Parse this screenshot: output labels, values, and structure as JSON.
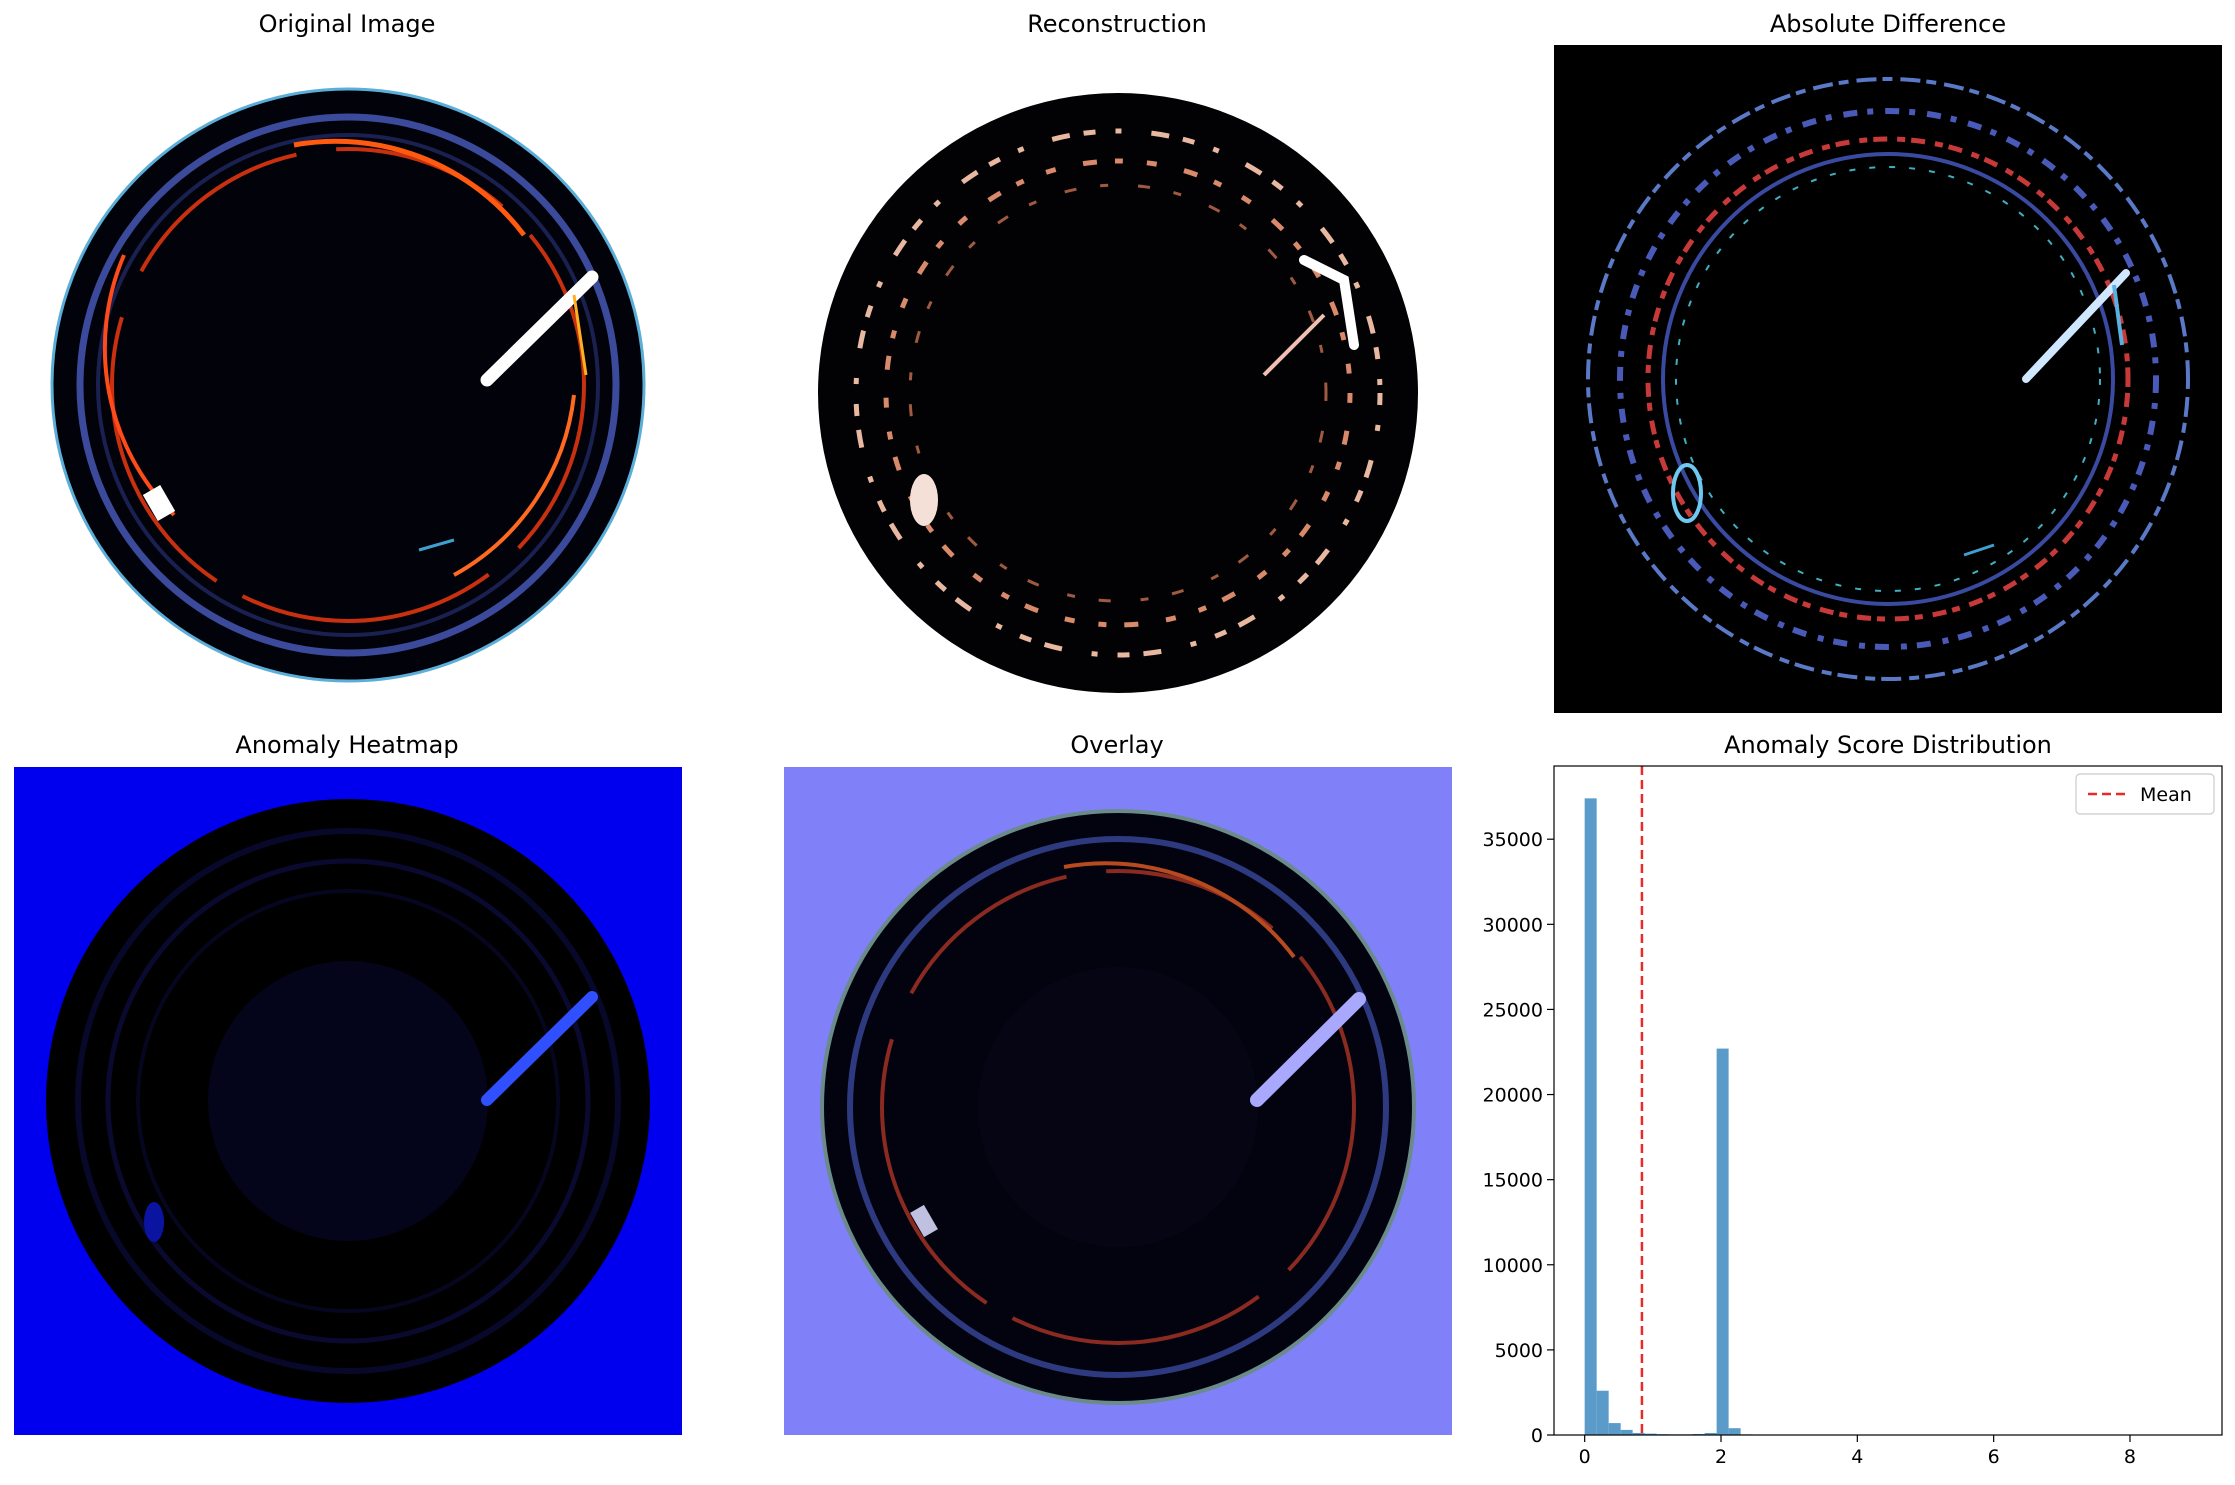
{
  "panels": {
    "original": {
      "title": "Original Image"
    },
    "reconstruction": {
      "title": "Reconstruction"
    },
    "difference": {
      "title": "Absolute Difference"
    },
    "heatmap": {
      "title": "Anomaly Heatmap"
    },
    "overlay": {
      "title": "Overlay"
    },
    "histogram": {
      "title": "Anomaly Score Distribution"
    }
  },
  "colors": {
    "bar": "#5b9bc9",
    "mean_line": "#e82a2a",
    "heatmap_bg": "#0000ee",
    "overlay_bg": "#8080f8"
  },
  "chart_data": {
    "type": "bar",
    "title": "Anomaly Score Distribution",
    "xlabel": "",
    "ylabel": "",
    "xlim": [
      -0.45,
      9.35
    ],
    "ylim": [
      0,
      39300
    ],
    "xticks": [
      0,
      2,
      4,
      6,
      8
    ],
    "yticks": [
      0,
      5000,
      10000,
      15000,
      20000,
      25000,
      30000,
      35000
    ],
    "bin_width": 0.176,
    "bins": [
      {
        "x0": 0.0,
        "count": 37400
      },
      {
        "x0": 0.176,
        "count": 2600
      },
      {
        "x0": 0.352,
        "count": 700
      },
      {
        "x0": 0.528,
        "count": 300
      },
      {
        "x0": 0.704,
        "count": 120
      },
      {
        "x0": 0.88,
        "count": 80
      },
      {
        "x0": 1.056,
        "count": 50
      },
      {
        "x0": 1.232,
        "count": 40
      },
      {
        "x0": 1.408,
        "count": 40
      },
      {
        "x0": 1.584,
        "count": 60
      },
      {
        "x0": 1.76,
        "count": 120
      },
      {
        "x0": 1.936,
        "count": 22700
      },
      {
        "x0": 2.112,
        "count": 400
      },
      {
        "x0": 2.288,
        "count": 40
      },
      {
        "x0": 2.464,
        "count": 20
      }
    ],
    "mean_line": {
      "label": "Mean",
      "x": 0.84
    },
    "legend": {
      "entries": [
        "Mean"
      ],
      "placement": "upper right"
    }
  }
}
